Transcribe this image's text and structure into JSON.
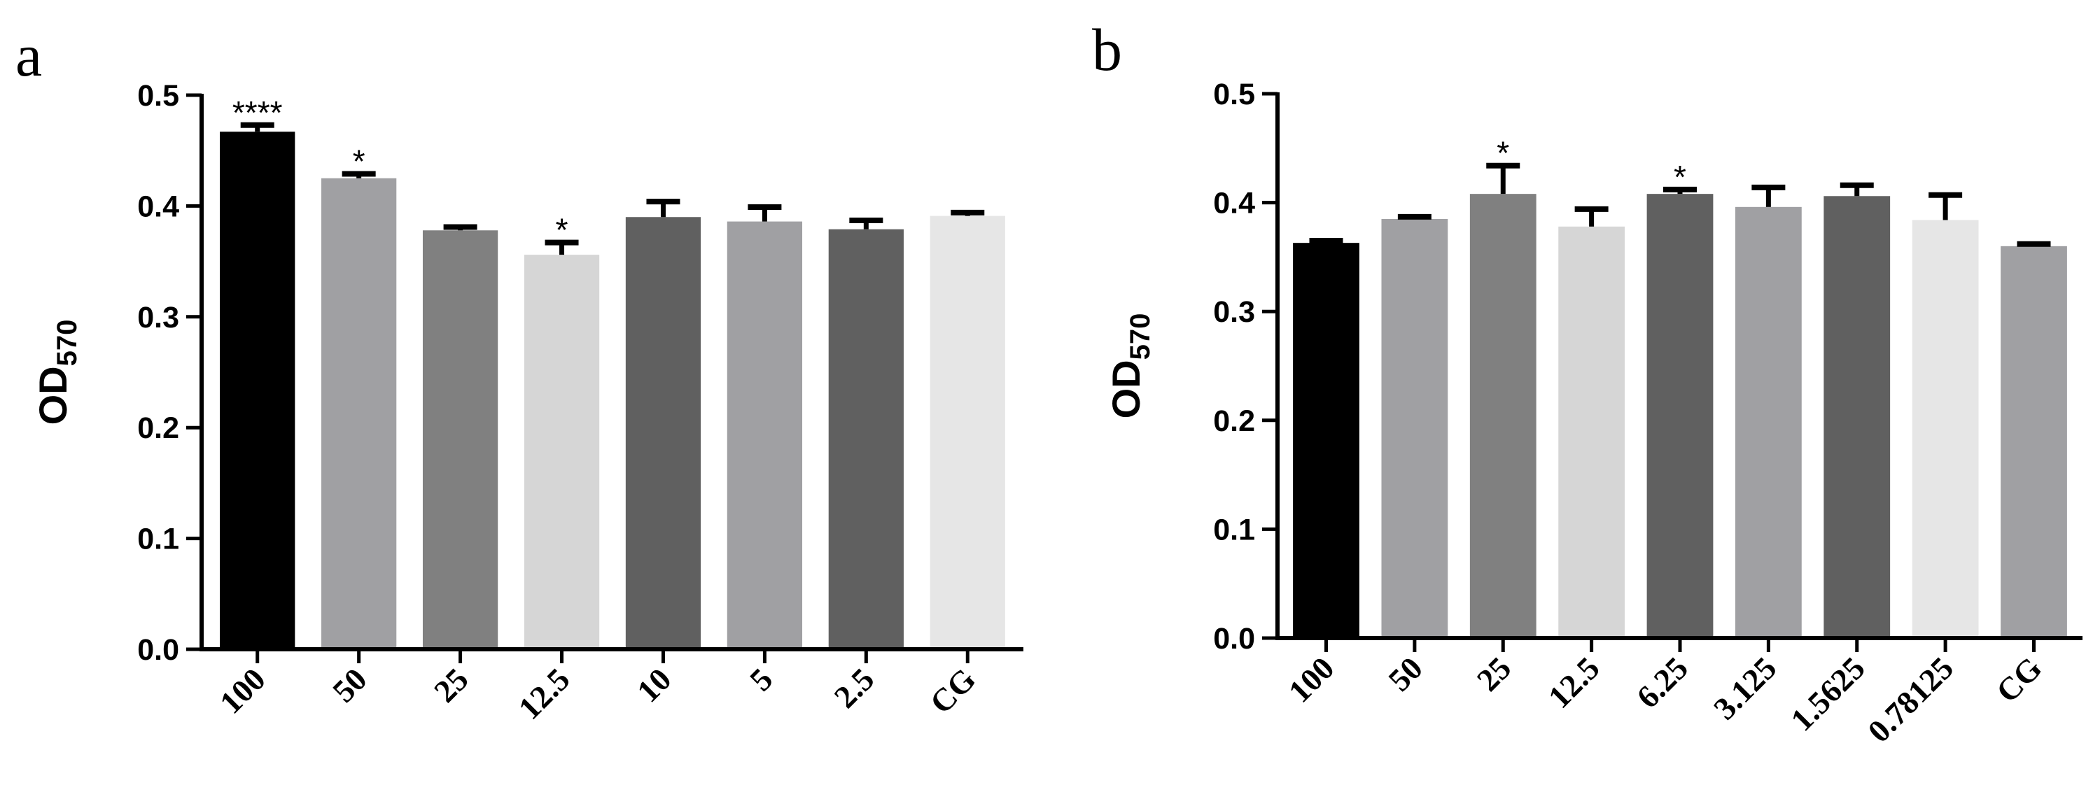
{
  "chart_data": [
    {
      "type": "bar",
      "panel_label": "a",
      "ylabel_main": "OD",
      "ylabel_sub": "570",
      "ylim": [
        0,
        0.5
      ],
      "yticks": [
        "0.0",
        "0.1",
        "0.2",
        "0.3",
        "0.4",
        "0.5"
      ],
      "categories": [
        "100",
        "50",
        "25",
        "12.5",
        "10",
        "5",
        "2.5",
        "CG"
      ],
      "values": [
        0.467,
        0.425,
        0.378,
        0.356,
        0.39,
        0.386,
        0.379,
        0.391
      ],
      "errors": [
        0.006,
        0.004,
        0.003,
        0.011,
        0.014,
        0.013,
        0.008,
        0.003
      ],
      "annotations": [
        "****",
        "*",
        "",
        "*",
        "",
        "",
        "",
        ""
      ],
      "colors": [
        "#000000",
        "#a0a0a3",
        "#808080",
        "#d6d6d6",
        "#606060",
        "#a0a0a3",
        "#606060",
        "#e6e6e6"
      ],
      "grid": false,
      "legend": "none"
    },
    {
      "type": "bar",
      "panel_label": "b",
      "ylabel_main": "OD",
      "ylabel_sub": "570",
      "ylim": [
        0,
        0.5
      ],
      "yticks": [
        "0.0",
        "0.1",
        "0.2",
        "0.3",
        "0.4",
        "0.5"
      ],
      "categories": [
        "100",
        "50",
        "25",
        "12.5",
        "6.25",
        "3.125",
        "1.5625",
        "0.78125",
        "CG"
      ],
      "values": [
        0.363,
        0.385,
        0.408,
        0.378,
        0.408,
        0.396,
        0.406,
        0.384,
        0.36
      ],
      "errors": [
        0.002,
        0.002,
        0.026,
        0.016,
        0.004,
        0.018,
        0.01,
        0.023,
        0.002
      ],
      "annotations": [
        "",
        "",
        "*",
        "",
        "*",
        "",
        "",
        "",
        ""
      ],
      "colors": [
        "#000000",
        "#a0a0a3",
        "#808080",
        "#d6d6d6",
        "#606060",
        "#a0a0a3",
        "#606060",
        "#e6e6e6",
        "#a0a0a3"
      ],
      "grid": false,
      "legend": "none"
    }
  ]
}
